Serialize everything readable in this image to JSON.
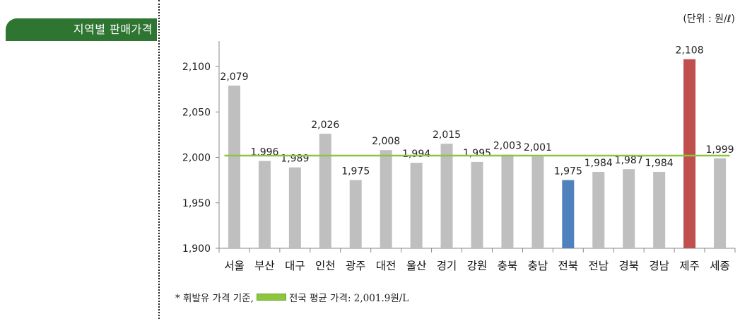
{
  "header": {
    "section_title": "지역별 판매가격",
    "unit": "(단위 : 원/ℓ)"
  },
  "footnote": {
    "prefix": "* 휘발유 가격 기준,",
    "legend_text": "전국 평균 가격: 2,001.9원/L"
  },
  "chart_data": {
    "type": "bar",
    "title": "",
    "xlabel": "",
    "ylabel": "",
    "categories": [
      "서울",
      "부산",
      "대구",
      "인천",
      "광주",
      "대전",
      "울산",
      "경기",
      "강원",
      "충북",
      "충남",
      "전북",
      "전남",
      "경북",
      "경남",
      "제주",
      "세종"
    ],
    "values": [
      2079,
      1996,
      1989,
      2026,
      1975,
      2008,
      1994,
      2015,
      1995,
      2003,
      2001,
      1975,
      1984,
      1987,
      1984,
      2108,
      1999
    ],
    "data_labels": [
      "2,079",
      "1,996",
      "1,989",
      "2,026",
      "1,975",
      "2,008",
      "1,994",
      "2,015",
      "1,995",
      "2,003",
      "2,001",
      "1,975",
      "1,984",
      "1,987",
      "1,984",
      "2,108",
      "1,999"
    ],
    "ylim": [
      1900,
      2100
    ],
    "yticks": [
      1900,
      1950,
      2000,
      2050,
      2100
    ],
    "ytick_labels": [
      "1,900",
      "1,950",
      "2,000",
      "2,050",
      "2,100"
    ],
    "reference_line": {
      "value": 2001.9,
      "color": "#8cc63f"
    },
    "colors": {
      "default": "#bfbfbf",
      "전북": "#4f81bd",
      "제주": "#c0504d"
    },
    "grid": false
  }
}
